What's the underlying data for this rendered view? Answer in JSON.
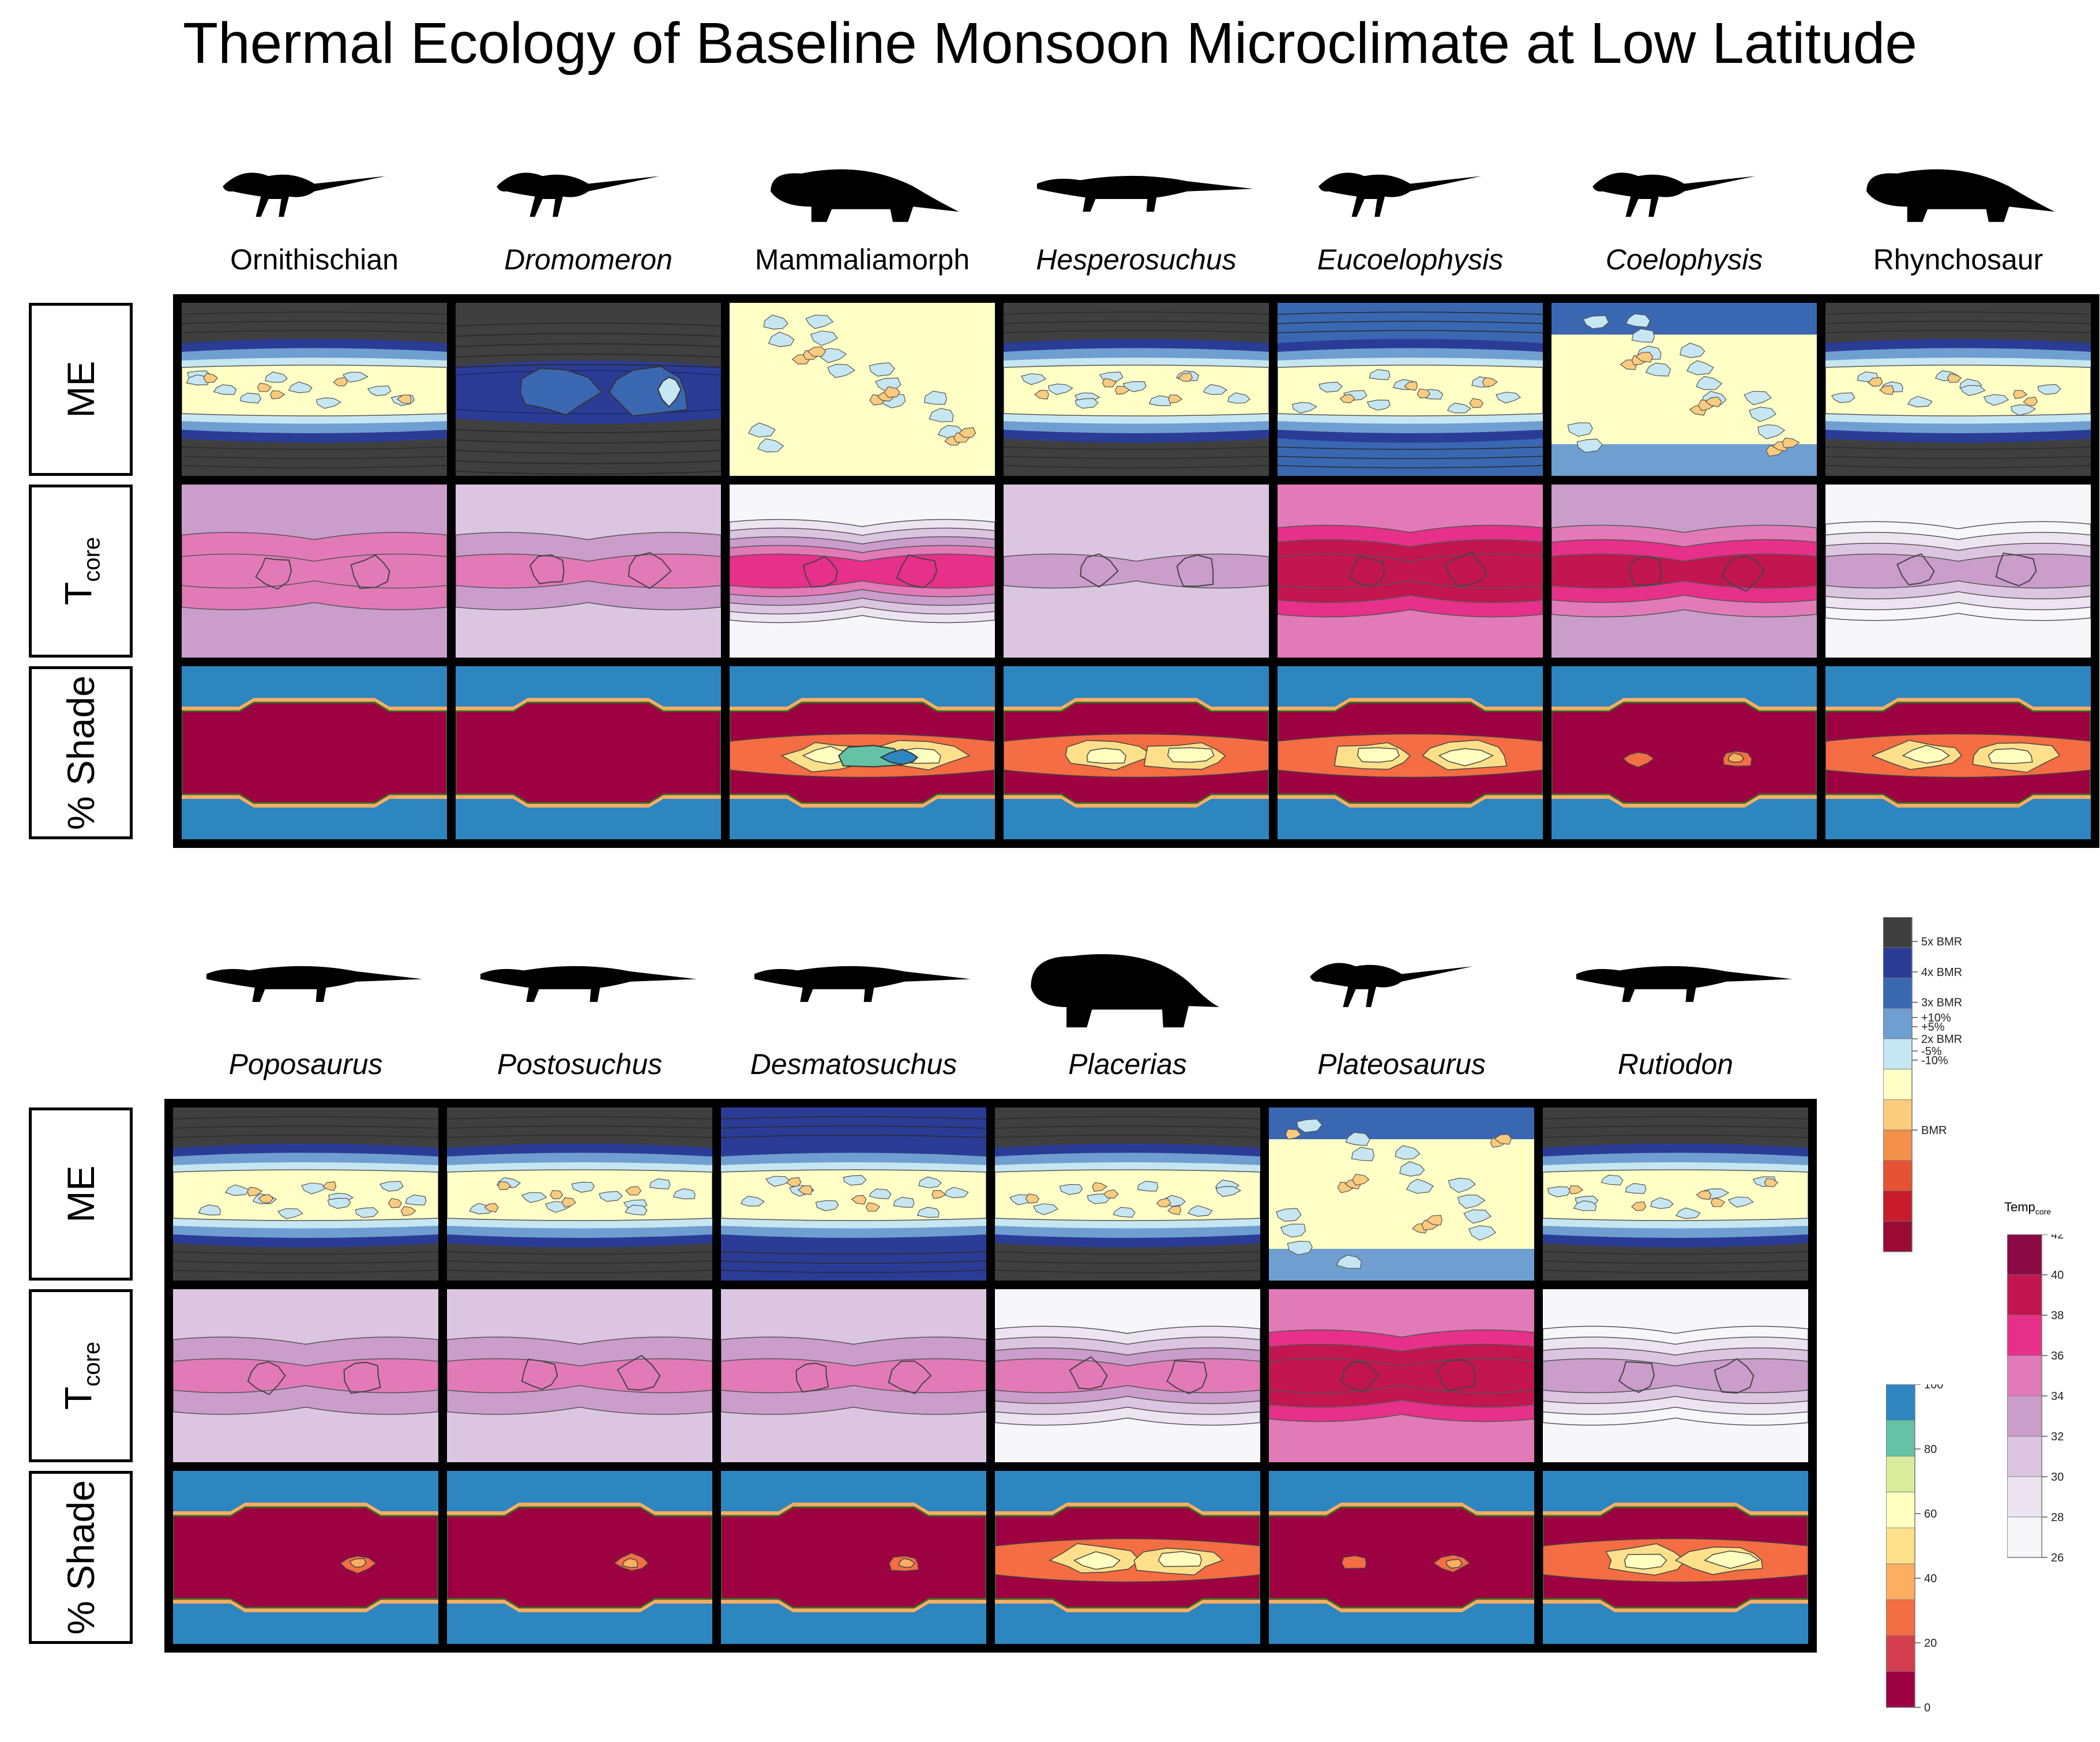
{
  "title": "Thermal Ecology of Baseline Monsoon Microclimate at Low Latitude",
  "row_labels": {
    "me": "ME",
    "tcore_main": "T",
    "tcore_sub": "core",
    "shade": "% Shade"
  },
  "groups": [
    {
      "taxa": [
        {
          "name": "Ornithischian",
          "italic": false,
          "silhouette": "ornithischian-silhouette"
        },
        {
          "name": "Dromomeron",
          "italic": true,
          "silhouette": "dromomeron-silhouette"
        },
        {
          "name": "Mammaliamorph",
          "italic": false,
          "silhouette": "mammaliamorph-silhouette"
        },
        {
          "name": "Hesperosuchus",
          "italic": true,
          "silhouette": "hesperosuchus-silhouette"
        },
        {
          "name": "Eucoelophysis",
          "italic": true,
          "silhouette": "eucoelophysis-silhouette"
        },
        {
          "name": "Coelophysis",
          "italic": true,
          "silhouette": "coelophysis-silhouette"
        },
        {
          "name": "Rhynchosaur",
          "italic": false,
          "silhouette": "rhynchosaur-silhouette"
        }
      ]
    },
    {
      "taxa": [
        {
          "name": "Poposaurus",
          "italic": true,
          "silhouette": "poposaurus-silhouette"
        },
        {
          "name": "Postosuchus",
          "italic": true,
          "silhouette": "postosuchus-silhouette"
        },
        {
          "name": "Desmatosuchus",
          "italic": true,
          "silhouette": "desmatosuchus-silhouette"
        },
        {
          "name": "Placerias",
          "italic": true,
          "silhouette": "placerias-silhouette"
        },
        {
          "name": "Plateosaurus",
          "italic": true,
          "silhouette": "plateosaurus-silhouette"
        },
        {
          "name": "Rutiodon",
          "italic": true,
          "silhouette": "rutiodon-silhouette"
        }
      ]
    }
  ],
  "chart_data": {
    "type": "heatmap",
    "title": "Thermal Ecology of Baseline Monsoon Microclimate at Low Latitude",
    "rows": [
      "ME",
      "Tcore",
      "% Shade"
    ],
    "panels": [
      {
        "taxon": "Ornithischian",
        "me": "mixed",
        "tcore": [
          34,
          37
        ],
        "shade_hotspots": false
      },
      {
        "taxon": "Dromomeron",
        "me": "high",
        "tcore": [
          32,
          36
        ],
        "shade_hotspots": false
      },
      {
        "taxon": "Mammaliamorph",
        "me": "low",
        "tcore": [
          28,
          38
        ],
        "shade_hotspots": true
      },
      {
        "taxon": "Hesperosuchus",
        "me": "mixed",
        "tcore": [
          33,
          35
        ],
        "shade_hotspots": true
      },
      {
        "taxon": "Eucoelophysis",
        "me": "mixed",
        "tcore": [
          36,
          41
        ],
        "shade_hotspots": true
      },
      {
        "taxon": "Coelophysis",
        "me": "low",
        "tcore": [
          35,
          41
        ],
        "shade_hotspots": true
      },
      {
        "taxon": "Rhynchosaur",
        "me": "mixed",
        "tcore": [
          27,
          35
        ],
        "shade_hotspots": true
      },
      {
        "taxon": "Poposaurus",
        "me": "mixed",
        "tcore": [
          33,
          37
        ],
        "shade_hotspots": true
      },
      {
        "taxon": "Postosuchus",
        "me": "mixed",
        "tcore": [
          33,
          36
        ],
        "shade_hotspots": true
      },
      {
        "taxon": "Desmatosuchus",
        "me": "mixed",
        "tcore": [
          33,
          36
        ],
        "shade_hotspots": true
      },
      {
        "taxon": "Placerias",
        "me": "mixed",
        "tcore": [
          29,
          37
        ],
        "shade_hotspots": true
      },
      {
        "taxon": "Plateosaurus",
        "me": "low",
        "tcore": [
          36,
          41
        ],
        "shade_hotspots": true
      },
      {
        "taxon": "Rutiodon",
        "me": "mixed",
        "tcore": [
          27,
          35
        ],
        "shade_hotspots": true
      }
    ],
    "legends": {
      "me": {
        "labels": [
          "5x BMR",
          "4x BMR",
          "3x BMR",
          "+10%",
          "+5%",
          "2x BMR",
          "-5%",
          "-10%",
          "BMR"
        ],
        "colors": [
          "#3f3f3f",
          "#2b3c97",
          "#3a67b2",
          "#6f9fd0",
          "#c6e6f2",
          "#ffffc6",
          "#fbcb7e",
          "#f3904a",
          "#e65234",
          "#c81b2b",
          "#9b0a34"
        ]
      },
      "tcore": {
        "title_main": "Temp",
        "title_sub": "core",
        "ticks": [
          42,
          40,
          38,
          36,
          34,
          32,
          30,
          28,
          26
        ],
        "colors": [
          "#8b0a46",
          "#c3154f",
          "#e63089",
          "#e27ab8",
          "#cb9dcb",
          "#dcc5e1",
          "#ece4f1",
          "#f7f6fb"
        ]
      },
      "shade": {
        "ticks": [
          100,
          80,
          60,
          40,
          20,
          0
        ],
        "colors": [
          "#2e86c1",
          "#66c2a5",
          "#d8ec9b",
          "#ffffbf",
          "#fee08b",
          "#fdae61",
          "#f46d43",
          "#d53e4f",
          "#9e0142"
        ]
      }
    }
  }
}
